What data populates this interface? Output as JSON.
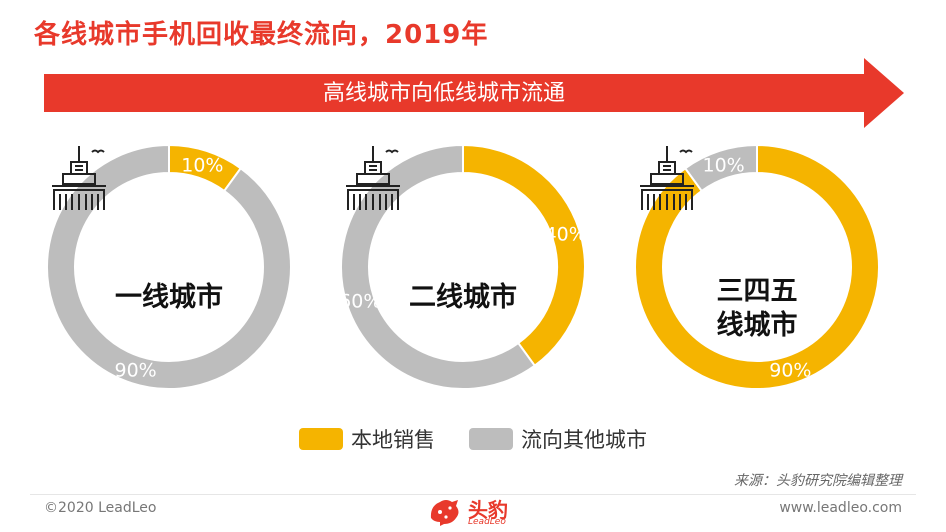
{
  "title": "各线城市手机回收最终流向，2019年",
  "banner": "高线城市向低线城市流通",
  "colors": {
    "local": "#f5b400",
    "other": "#bdbdbd",
    "accent": "#e8392b"
  },
  "chart_data": {
    "type": "pie",
    "variant": "donut",
    "series_names": [
      "本地销售",
      "流向其他城市"
    ],
    "charts": [
      {
        "label": "一线城市",
        "values": [
          10,
          90
        ],
        "labels": [
          "10%",
          "90%"
        ]
      },
      {
        "label": "二线城市",
        "values": [
          40,
          60
        ],
        "labels": [
          "40%",
          "60%"
        ]
      },
      {
        "label": "三四五线城市",
        "label_lines": [
          "三四五",
          "线城市"
        ],
        "values": [
          90,
          10
        ],
        "labels": [
          "90%",
          "10%"
        ]
      }
    ],
    "legend": [
      "本地销售",
      "流向其他城市"
    ],
    "legend_position": "bottom"
  },
  "source": "来源：头豹研究院编辑整理",
  "footer": {
    "copyright": "©2020 LeadLeo",
    "logo_text": "头豹",
    "logo_sub": "LeadLeo",
    "website": "www.leadleo.com"
  }
}
